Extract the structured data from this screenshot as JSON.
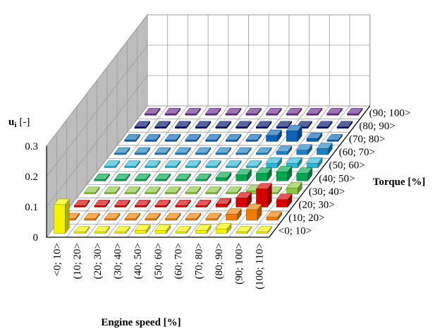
{
  "chart_data": {
    "type": "bar3d",
    "title": "",
    "xlabel": "Engine speed [%]",
    "ylabel": "Torque [%]",
    "zlabel": "u",
    "zlabel_sub": "i",
    "zlabel_unit": "[-]",
    "zlim": [
      0,
      0.3
    ],
    "zticks": [
      "0",
      "0.1",
      "0.2",
      "0.3"
    ],
    "grid": true,
    "x_categories": [
      "<0; 10>",
      "(10; 20>",
      "(20; 30>",
      "(30; 40>",
      "(40; 50>",
      "(50; 60>",
      "(60; 70>",
      "(70; 80>",
      "(80; 90>",
      "(90; 100>",
      "(100; 110>"
    ],
    "y_categories": [
      "<0; 10>",
      "(10; 20>",
      "(20; 30>",
      "(30; 40>",
      "(40; 50>",
      "(50; 60>",
      "(60; 70>",
      "(70; 80>",
      "(80; 90>",
      "(90; 100>"
    ],
    "series_colors": [
      "#f3f300",
      "#f07d00",
      "#d40000",
      "#8cc63f",
      "#00a650",
      "#2db6d6",
      "#1e7fc2",
      "#0b63b5",
      "#000f6a",
      "#6a2a8c"
    ],
    "values": [
      [
        0.095,
        0.005,
        0.005,
        0.005,
        0.01,
        0.01,
        0.005,
        0.01,
        0.015,
        0.005,
        0.005
      ],
      [
        0.005,
        0.005,
        0.005,
        0.005,
        0.005,
        0.005,
        0.005,
        0.005,
        0.02,
        0.035,
        0.01
      ],
      [
        0.005,
        0.005,
        0.005,
        0.005,
        0.005,
        0.005,
        0.005,
        0.01,
        0.03,
        0.06,
        0.025
      ],
      [
        0.005,
        0.005,
        0.005,
        0.005,
        0.005,
        0.005,
        0.005,
        0.005,
        0.01,
        0.005,
        0.02
      ],
      [
        0.005,
        0.005,
        0.005,
        0.005,
        0.005,
        0.005,
        0.01,
        0.02,
        0.025,
        0.03,
        0.025
      ],
      [
        0.005,
        0.005,
        0.005,
        0.005,
        0.005,
        0.005,
        0.005,
        0.005,
        0.015,
        0.015,
        0.015
      ],
      [
        0.005,
        0.005,
        0.005,
        0.005,
        0.005,
        0.005,
        0.005,
        0.005,
        0.01,
        0.015,
        0.02
      ],
      [
        0.005,
        0.005,
        0.005,
        0.005,
        0.005,
        0.005,
        0.005,
        0.02,
        0.035,
        0.01,
        0.005
      ],
      [
        0.005,
        0.005,
        0.005,
        0.005,
        0.005,
        0.005,
        0.005,
        0.005,
        0.005,
        0.005,
        0.005
      ],
      [
        0.005,
        0.005,
        0.005,
        0.005,
        0.005,
        0.005,
        0.005,
        0.005,
        0.005,
        0.005,
        0.005
      ]
    ]
  }
}
